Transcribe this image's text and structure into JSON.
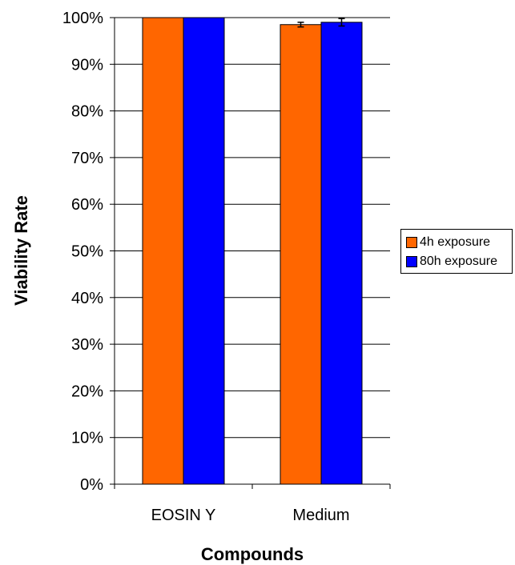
{
  "chart_data": {
    "type": "bar",
    "categories": [
      "EOSIN Y",
      "Medium"
    ],
    "series": [
      {
        "name": "4h exposure",
        "values": [
          1.0,
          0.985
        ],
        "error": [
          0,
          0.005
        ],
        "color": "#ff6600"
      },
      {
        "name": "80h exposure",
        "values": [
          1.0,
          0.99
        ],
        "error": [
          0,
          0.008
        ],
        "color": "#0000ff"
      }
    ],
    "xlabel": "Compounds",
    "ylabel": "Viability Rate",
    "ylim": [
      0,
      1
    ],
    "yticks": [
      "0%",
      "10%",
      "20%",
      "30%",
      "40%",
      "50%",
      "60%",
      "70%",
      "80%",
      "90%",
      "100%"
    ],
    "grid": true,
    "legend_position": "right"
  }
}
